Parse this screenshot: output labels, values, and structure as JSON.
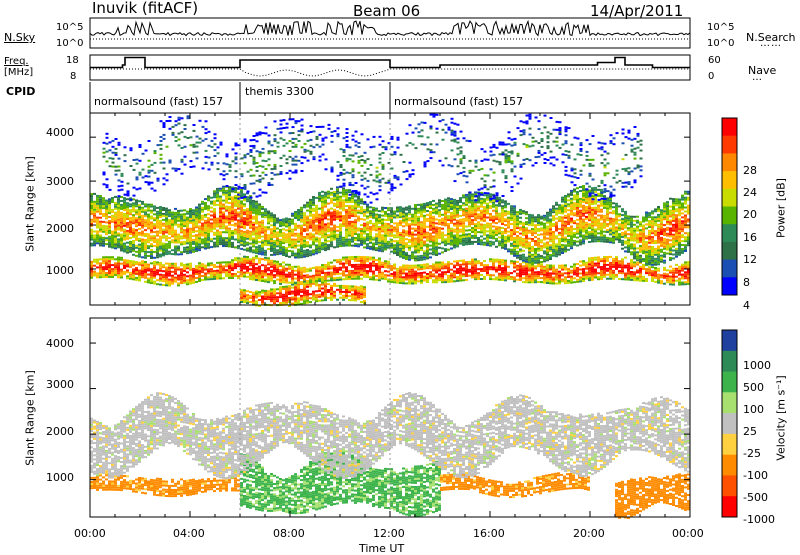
{
  "header": {
    "station": "Inuvik (fitACF)",
    "beam": "Beam 06",
    "date": "14/Apr/2011"
  },
  "strip_labels": {
    "nsky": "N.Sky",
    "nsearch": "N.Search",
    "freq_line1": "Freq.",
    "freq_line2": "[MHz]",
    "nave": "Nave",
    "cpid": "CPID",
    "nsky_ticks": [
      "10^5",
      "10^0"
    ],
    "nsearch_ticks": [
      "10^5",
      "10^0"
    ],
    "freq_ticks": [
      "18",
      "8"
    ],
    "nave_ticks": [
      "60",
      "0"
    ]
  },
  "cpid_segments": [
    {
      "label": "normalsound (fast) 157",
      "start_h": 0,
      "end_h": 6
    },
    {
      "label": "themis 3300",
      "start_h": 6,
      "end_h": 12
    },
    {
      "label": "normalsound (fast) 157",
      "start_h": 12,
      "end_h": 24
    }
  ],
  "panels": {
    "power_ylabel": "Slant Range [km]",
    "velocity_ylabel": "Slant Range [km]",
    "y_ticks": [
      "4000",
      "3000",
      "2000",
      "1000"
    ],
    "x_ticks": [
      "00:00",
      "04:00",
      "08:00",
      "12:00",
      "16:00",
      "20:00",
      "00:00"
    ],
    "xlabel": "Time UT"
  },
  "power_colorbar": {
    "label": "Power [dB]",
    "ticks": [
      "28",
      "24",
      "20",
      "16",
      "12",
      "8",
      "4"
    ],
    "colors": [
      "#ff0000",
      "#ff3a00",
      "#ff8800",
      "#ffbf00",
      "#c8dc00",
      "#59b400",
      "#2e8b57",
      "#2e7048",
      "#1c4fb4",
      "#0000ff"
    ]
  },
  "velocity_colorbar": {
    "label": "Velocity [m s⁻¹]",
    "ticks": [
      "1000",
      "500",
      "100",
      "25",
      "-25",
      "-100",
      "-500",
      "-1000"
    ],
    "colors": [
      "#2040a0",
      "#2e8b57",
      "#3cb44b",
      "#a8e070",
      "#c0c0c0",
      "#ffd040",
      "#ff8c00",
      "#ff5000",
      "#ff0000"
    ]
  },
  "chart_data": [
    {
      "type": "heatmap",
      "title": "Beam 06",
      "quantity": "Power [dB]",
      "xlabel": "Time UT",
      "ylabel": "Slant Range [km]",
      "xlim": [
        "00:00",
        "24:00"
      ],
      "ylim": [
        180,
        4550
      ],
      "value_range": [
        0,
        30
      ],
      "echo_bands": [
        {
          "time_range_h": [
            0,
            24
          ],
          "slant_range_km": [
            700,
            1250
          ],
          "typical_power_db": 26
        },
        {
          "time_range_h": [
            0,
            24
          ],
          "slant_range_km": [
            1300,
            2700
          ],
          "typical_power_db": 20
        },
        {
          "time_range_h": [
            6,
            11
          ],
          "slant_range_km": [
            200,
            700
          ],
          "typical_power_db": 26
        },
        {
          "time_range_h": [
            0.5,
            22
          ],
          "slant_range_km": [
            2800,
            4400
          ],
          "typical_power_db": 8
        }
      ]
    },
    {
      "type": "heatmap",
      "quantity": "Velocity [m s⁻¹]",
      "xlabel": "Time UT",
      "ylabel": "Slant Range [km]",
      "xlim": [
        "00:00",
        "24:00"
      ],
      "ylim": [
        180,
        4550
      ],
      "value_range": [
        -1000,
        1000
      ],
      "echo_bands": [
        {
          "time_range_h": [
            0,
            6
          ],
          "slant_range_km": [
            700,
            1100
          ],
          "typical_velocity_ms": -200
        },
        {
          "time_range_h": [
            6,
            14
          ],
          "slant_range_km": [
            300,
            1500
          ],
          "typical_velocity_ms": 150
        },
        {
          "time_range_h": [
            14,
            20
          ],
          "slant_range_km": [
            700,
            1100
          ],
          "typical_velocity_ms": -200
        },
        {
          "time_range_h": [
            21,
            24
          ],
          "slant_range_km": [
            200,
            1100
          ],
          "typical_velocity_ms": -300
        },
        {
          "time_range_h": [
            0,
            24
          ],
          "slant_range_km": [
            1300,
            2700
          ],
          "typical_velocity_ms": 0
        }
      ]
    }
  ]
}
